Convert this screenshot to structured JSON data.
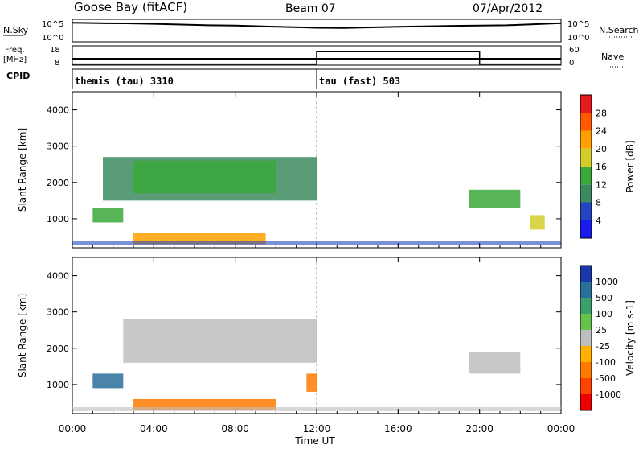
{
  "header": {
    "station": "Goose Bay (fitACF)",
    "beam": "Beam 07",
    "date": "07/Apr/2012"
  },
  "noise_panel": {
    "left_label": "N.Sky",
    "right_label": "N.Search",
    "tick_top": "10^5",
    "tick_bottom": "10^0",
    "nsky_log10": [
      4.7,
      4.6,
      4.55,
      4.4,
      4.2,
      4.0,
      3.9,
      3.7,
      3.5,
      3.3,
      3.25,
      3.4,
      3.6,
      3.7,
      3.85,
      3.9,
      4.0,
      4.3,
      4.6
    ]
  },
  "freq_panel": {
    "left_label_1": "Freq.",
    "left_label_2": "[MHz]",
    "right_label": "Nave",
    "left_tick_top": "18",
    "left_tick_bottom": "8",
    "right_tick_top": "60",
    "right_tick_bottom": "0",
    "freq_mhz": 10.0,
    "nave_segments": [
      {
        "start_h": 0,
        "end_h": 12,
        "nave": 1
      },
      {
        "start_h": 12,
        "end_h": 20,
        "nave": 45
      },
      {
        "start_h": 20,
        "end_h": 24,
        "nave": 1
      }
    ]
  },
  "cpid_panel": {
    "label": "CPID",
    "modes": [
      {
        "start_h": 0,
        "text": "themis (tau) 3310"
      },
      {
        "start_h": 12,
        "text": "tau (fast) 503"
      }
    ]
  },
  "power_colorbar": {
    "title": "Power [dB]",
    "ticks": [
      "28",
      "24",
      "20",
      "16",
      "12",
      "8",
      "4"
    ],
    "colors": [
      "#e61a1a",
      "#ff5a00",
      "#ffa000",
      "#d4cc2a",
      "#3aa83a",
      "#3d8a60",
      "#2444c0",
      "#1a1aee"
    ]
  },
  "velocity_colorbar": {
    "title": "Velocity [m s-1]",
    "ticks": [
      "1000",
      "500",
      "100",
      "25",
      "-25",
      "-100",
      "-500",
      "-1000"
    ],
    "colors": [
      "#1a37a8",
      "#2a6f9c",
      "#3a9f6a",
      "#66c24a",
      "#bebebe",
      "#ffb000",
      "#ff7a00",
      "#ff4400",
      "#ee0000"
    ]
  },
  "chart_data": {
    "type": "heatmap",
    "xlabel": "Time UT",
    "ylabel": "Slant Range [km]",
    "xlim_h": [
      0,
      24
    ],
    "ylim_km": [
      200,
      4500
    ],
    "x_ticks": [
      "00:00",
      "04:00",
      "08:00",
      "12:00",
      "16:00",
      "20:00",
      "00:00"
    ],
    "y_ticks": [
      "1000",
      "2000",
      "3000",
      "4000"
    ],
    "power_regions": [
      {
        "t0": 1.5,
        "t1": 12.0,
        "r0": 1500,
        "r1": 2700,
        "db": 10
      },
      {
        "t0": 3.0,
        "t1": 10.0,
        "r0": 1700,
        "r1": 2600,
        "db": 16
      },
      {
        "t0": 1.0,
        "t1": 2.5,
        "r0": 900,
        "r1": 1300,
        "db": 14
      },
      {
        "t0": 3.0,
        "t1": 9.5,
        "r0": 300,
        "r1": 600,
        "db": 22
      },
      {
        "t0": 19.5,
        "t1": 22.0,
        "r0": 1300,
        "r1": 1800,
        "db": 14
      },
      {
        "t0": 22.5,
        "t1": 23.2,
        "r0": 700,
        "r1": 1100,
        "db": 20
      }
    ],
    "velocity_regions": [
      {
        "t0": 2.5,
        "t1": 12.0,
        "r0": 1600,
        "r1": 2800,
        "v": 0
      },
      {
        "t0": 3.0,
        "t1": 10.0,
        "r0": 300,
        "r1": 600,
        "v": -200
      },
      {
        "t0": 11.5,
        "t1": 12.0,
        "r0": 800,
        "r1": 1300,
        "v": -300
      },
      {
        "t0": 1.0,
        "t1": 2.5,
        "r0": 900,
        "r1": 1300,
        "v": 120
      },
      {
        "t0": 19.5,
        "t1": 22.0,
        "r0": 1300,
        "r1": 1900,
        "v": 0
      }
    ]
  }
}
